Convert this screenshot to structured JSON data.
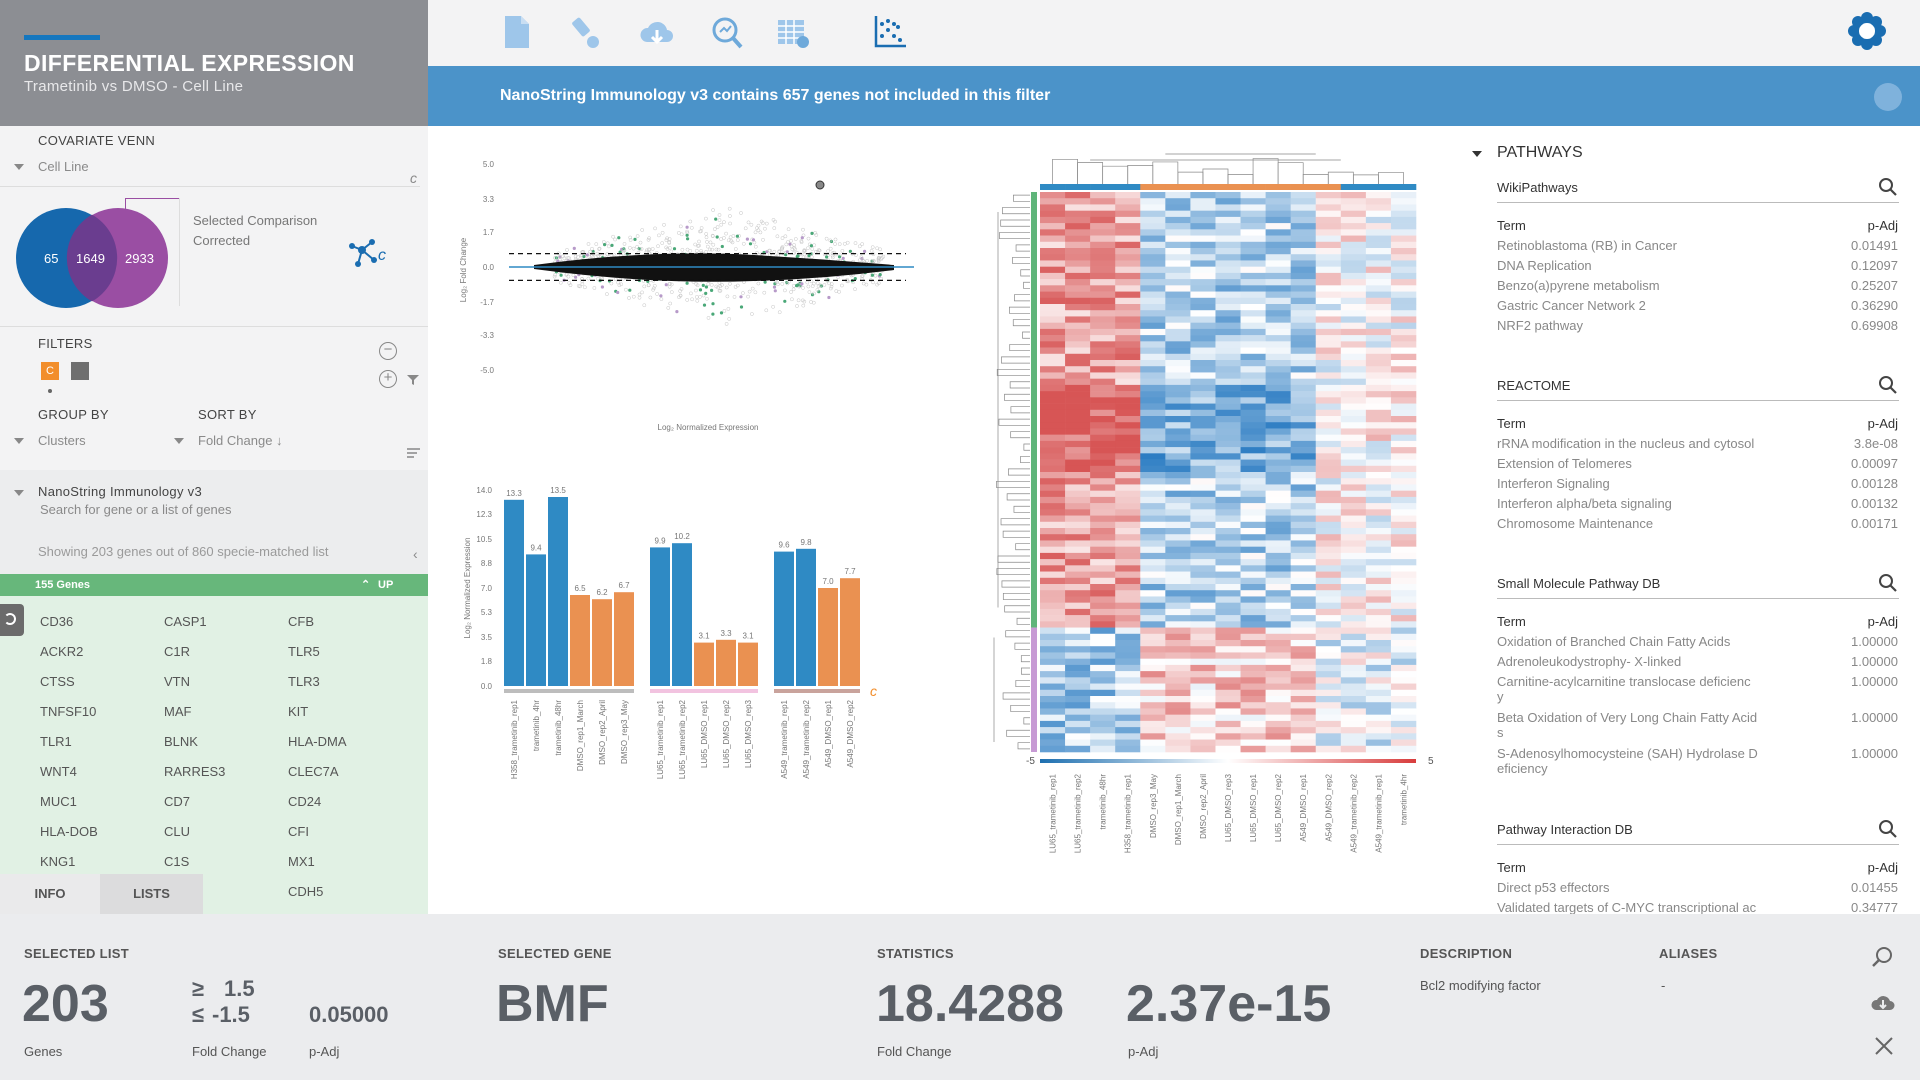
{
  "header": {
    "title": "DIFFERENTIAL EXPRESSION",
    "subtitle": "Trametinib vs DMSO - Cell Line"
  },
  "toolbar": {
    "icons": [
      "document-icon",
      "brush-icon",
      "cloud-download-icon",
      "search-chart-icon",
      "table-settings-icon",
      "scatter-axis-icon"
    ],
    "logo": "flower-logo-icon"
  },
  "notice": {
    "text": "NanoString Immunology v3 contains 657 genes not included in this filter"
  },
  "venn": {
    "label": "COVARIATE VENN",
    "dropdown": "Cell Line",
    "left": "65",
    "middle": "1649",
    "right": "2933",
    "selected_line1": "Selected Comparison",
    "selected_line2": "Corrected",
    "colors": {
      "left": "#1668ad",
      "right": "#9a4ea3"
    }
  },
  "filters": {
    "label": "FILTERS",
    "chip": "C",
    "chip_color": "#f28e2b"
  },
  "group": {
    "label": "GROUP BY",
    "value": "Clusters"
  },
  "sort": {
    "label": "SORT BY",
    "value": "Fold Change ↓"
  },
  "genelist": {
    "name": "NanoString Immunology v3",
    "placeholder": "Search for gene or a list of genes",
    "showing": "Showing 203 genes out of 860 specie-matched list",
    "count_label": "155 Genes",
    "direction": "UP",
    "genes": [
      "CD36",
      "CASP1",
      "CFB",
      "ACKR2",
      "C1R",
      "TLR5",
      "CTSS",
      "VTN",
      "TLR3",
      "TNFSF10",
      "MAF",
      "KIT",
      "TLR1",
      "BLNK",
      "HLA-DMA",
      "WNT4",
      "RARRES3",
      "CLEC7A",
      "MUC1",
      "CD7",
      "CD24",
      "HLA-DOB",
      "CLU",
      "CFI",
      "KNG1",
      "C1S",
      "MX1",
      "",
      "",
      "CDH5"
    ]
  },
  "tabs": {
    "info": "INFO",
    "lists": "LISTS"
  },
  "ma": {
    "xlabel": "Log₂ Normalized Expression",
    "ylabel": "Log₂ Fold Change",
    "yticks": [
      "5.0",
      "3.3",
      "1.7",
      "0.0",
      "-1.7",
      "-3.3",
      "-5.0"
    ]
  },
  "chart_data": {
    "type": "bar",
    "ylabel": "Log₂ Normalized Expression",
    "yticks": [
      "14.0",
      "12.3",
      "10.5",
      "8.8",
      "7.0",
      "5.3",
      "3.5",
      "1.8",
      "0.0"
    ],
    "ylim": [
      0,
      14
    ],
    "groups": [
      {
        "categories": [
          "H358_trametinib_rep1",
          "trametinib_4hr",
          "trametinib_48hr",
          "DMSO_rep1_March",
          "DMSO_rep2_April",
          "DMSO_rep3_May"
        ],
        "values": [
          13.3,
          9.4,
          13.5,
          6.5,
          6.2,
          6.7
        ],
        "labels": [
          "13.3",
          "9.4",
          "13.5",
          "6.5",
          "6.2",
          "6.7"
        ],
        "kinds": [
          "t",
          "t",
          "t",
          "d",
          "d",
          "d"
        ],
        "band": "#bdbdbd"
      },
      {
        "categories": [
          "LU65_trametinib_rep1",
          "LU65_trametinib_rep2",
          "LU65_DMSO_rep1",
          "LU65_DMSO_rep2",
          "LU65_DMSO_rep3"
        ],
        "values": [
          9.9,
          10.2,
          3.1,
          3.3,
          3.1
        ],
        "labels": [
          "9.9",
          "10.2",
          "3.1",
          "3.3",
          "3.1"
        ],
        "kinds": [
          "t",
          "t",
          "d",
          "d",
          "d"
        ],
        "band": "#f2c3e0"
      },
      {
        "categories": [
          "A549_trametinib_rep1",
          "A549_trametinib_rep2",
          "A549_DMSO_rep1",
          "A549_DMSO_rep2"
        ],
        "values": [
          9.6,
          9.8,
          7.0,
          7.7
        ],
        "labels": [
          "9.6",
          "9.8",
          "7.0",
          "7.7"
        ],
        "kinds": [
          "t",
          "t",
          "d",
          "d"
        ],
        "band": "#c9a39c"
      }
    ],
    "colors": {
      "trametinib": "#2f8ac4",
      "dmso": "#ea9151"
    }
  },
  "heatmap": {
    "scale_min": "-5",
    "scale_max": "5",
    "columns": [
      "LU65_trametinib_rep1",
      "LU65_trametinib_rep2",
      "trametinib_48hr",
      "H358_trametinib_rep1",
      "DMSO_rep3_May",
      "DMSO_rep1_March",
      "DMSO_rep2_April",
      "LU65_DMSO_rep3",
      "LU65_DMSO_rep1",
      "LU65_DMSO_rep2",
      "A549_DMSO_rep1",
      "A549_DMSO_rep2",
      "A549_trametinib_rep2",
      "A549_trametinib_rep1",
      "trametinib_4hr"
    ]
  },
  "pathways": {
    "title": "PATHWAYS",
    "sections": [
      {
        "name": "WikiPathways",
        "term": "Term",
        "padj": "p-Adj",
        "rows": [
          [
            "Retinoblastoma (RB) in Cancer",
            "0.01491"
          ],
          [
            "DNA Replication",
            "0.12097"
          ],
          [
            "Benzo(a)pyrene metabolism",
            "0.25207"
          ],
          [
            "Gastric Cancer Network 2",
            "0.36290"
          ],
          [
            "NRF2 pathway",
            "0.69908"
          ]
        ]
      },
      {
        "name": "REACTOME",
        "term": "Term",
        "padj": "p-Adj",
        "rows": [
          [
            "rRNA modification in the nucleus and cytosol",
            "3.8e-08"
          ],
          [
            "Extension of Telomeres",
            "0.00097"
          ],
          [
            "Interferon Signaling",
            "0.00128"
          ],
          [
            "Interferon alpha/beta signaling",
            "0.00132"
          ],
          [
            "Chromosome Maintenance",
            "0.00171"
          ]
        ]
      },
      {
        "name": "Small Molecule Pathway DB",
        "term": "Term",
        "padj": "p-Adj",
        "rows": [
          [
            "Oxidation of Branched Chain Fatty Acids",
            "1.00000"
          ],
          [
            "Adrenoleukodystrophy- X-linked",
            "1.00000"
          ],
          [
            "Carnitine-acylcarnitine translocase deficienc\ny",
            "1.00000"
          ],
          [
            "Beta Oxidation of Very Long Chain Fatty Acid\ns",
            "1.00000"
          ],
          [
            "S-Adenosylhomocysteine (SAH) Hydrolase D\neficiency",
            "1.00000"
          ]
        ]
      },
      {
        "name": "Pathway Interaction DB",
        "term": "Term",
        "padj": "p-Adj",
        "rows": [
          [
            "Direct p53 effectors",
            "0.01455"
          ],
          [
            "Validated targets of C-MYC transcriptional ac",
            "0.34777"
          ]
        ]
      }
    ]
  },
  "footer": {
    "sel_list_label": "SELECTED LIST",
    "sel_list_value": "203",
    "genes_label": "Genes",
    "fc_ge": "≥",
    "fc_ge_val": "1.5",
    "fc_le": "≤",
    "fc_le_val": "-1.5",
    "fc_label": "Fold Change",
    "padj_val": "0.05000",
    "padj_label": "p-Adj",
    "sel_gene_label": "SELECTED GENE",
    "sel_gene": "BMF",
    "stats_label": "STATISTICS",
    "stat_fc": "18.4288",
    "stat_fc_label": "Fold Change",
    "stat_p": "2.37e-15",
    "stat_p_label": "p-Adj",
    "desc_label": "DESCRIPTION",
    "desc": "Bcl2 modifying factor",
    "alias_label": "ALIASES",
    "alias": "-"
  }
}
